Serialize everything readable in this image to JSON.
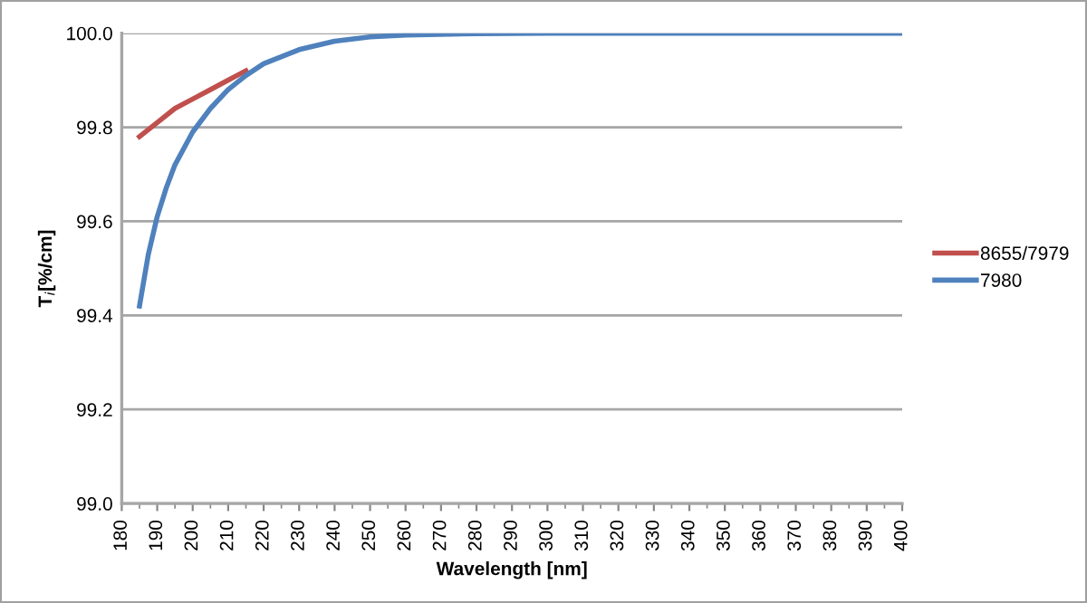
{
  "chart_data": {
    "type": "line",
    "xlabel": "Wavelength [nm]",
    "ylabel": "T$_{i}$[%/cm]",
    "xlim": [
      180,
      400
    ],
    "xticks": [
      180,
      190,
      200,
      210,
      220,
      230,
      240,
      250,
      260,
      270,
      280,
      290,
      300,
      310,
      320,
      330,
      340,
      350,
      360,
      370,
      380,
      390,
      400
    ],
    "ylim": [
      99.0,
      100.0
    ],
    "yticks": [
      {
        "value": 99.0,
        "label": "99.0"
      },
      {
        "value": 99.2,
        "label": "99.2"
      },
      {
        "value": 99.4,
        "label": "99.4"
      },
      {
        "value": 99.6,
        "label": "99.6"
      },
      {
        "value": 99.8,
        "label": "99.8"
      },
      {
        "value": 100.0,
        "label": "100.0"
      }
    ],
    "grid": "y",
    "legend": "right",
    "marker": "none",
    "line_style": "solid",
    "series": [
      {
        "name": "8655/7979",
        "color": "#c0504d",
        "x": [
          185,
          190,
          195,
          200,
          205,
          210,
          215
        ],
        "values": [
          99.78,
          99.81,
          99.84,
          99.86,
          99.88,
          99.9,
          99.92
        ]
      },
      {
        "name": "7980",
        "color": "#4f81bd",
        "x": [
          185,
          187.5,
          190,
          192.5,
          195,
          200,
          205,
          210,
          215,
          220,
          230,
          240,
          250,
          260,
          280,
          300,
          400
        ],
        "values": [
          99.42,
          99.53,
          99.61,
          99.67,
          99.72,
          99.79,
          99.84,
          99.88,
          99.91,
          99.935,
          99.965,
          99.983,
          99.992,
          99.996,
          99.999,
          100.0,
          100.0
        ]
      }
    ]
  }
}
